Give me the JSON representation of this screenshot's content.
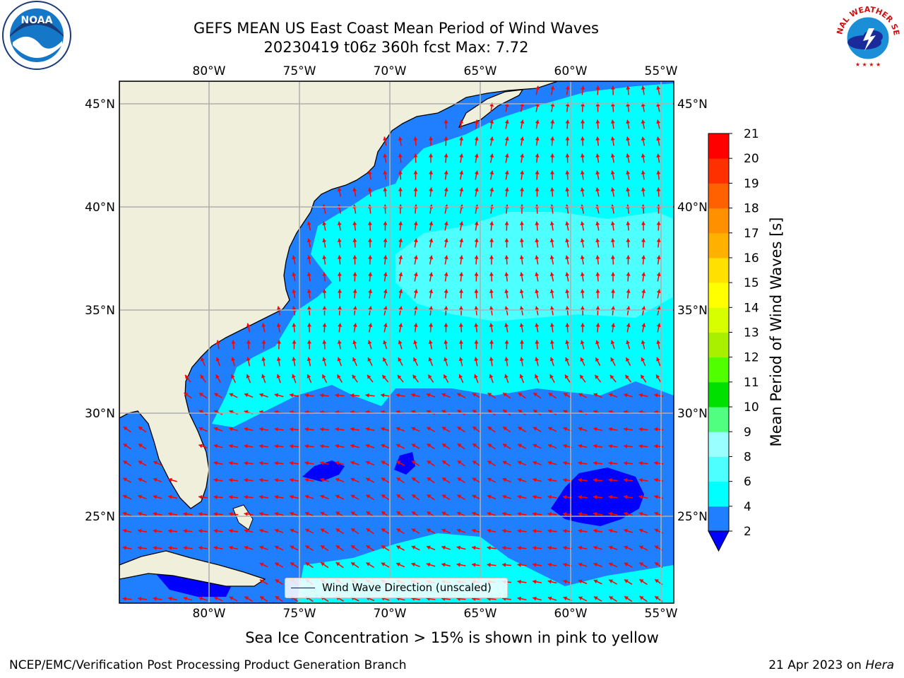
{
  "title": {
    "line1": "GEFS MEAN US East Coast Mean Period of Wind Waves",
    "line2": "20230419 t06z 360h fcst   Max: 7.72"
  },
  "logos": {
    "left": "NOAA",
    "right": "NATIONAL WEATHER SERVICE"
  },
  "chart_data": {
    "type": "heatmap",
    "projection": "map",
    "lon_range": [
      -85,
      -54.3
    ],
    "lat_range": [
      20.5,
      46
    ],
    "grid": true,
    "lon_ticks": [
      -80,
      -75,
      -70,
      -65,
      -60,
      -55
    ],
    "lat_ticks": [
      45,
      40,
      35,
      30,
      25
    ],
    "lon_tick_labels": [
      "80°W",
      "75°W",
      "70°W",
      "65°W",
      "60°W",
      "55°W"
    ],
    "lat_tick_labels": [
      "45°N",
      "40°N",
      "35°N",
      "30°N",
      "25°N"
    ],
    "colorbar": {
      "label": "Mean Period of Wind Waves [s]",
      "levels": [
        2,
        4,
        6,
        8,
        9,
        10,
        11,
        12,
        13,
        14,
        15,
        16,
        17,
        18,
        19,
        20,
        21
      ],
      "colors": [
        "#1f7fff",
        "#00ffff",
        "#4dffff",
        "#99ffff",
        "#50ff80",
        "#00e000",
        "#50ff00",
        "#a8f000",
        "#d8ff00",
        "#ffff00",
        "#ffe000",
        "#ffb000",
        "#ff9000",
        "#ff6000",
        "#ff3000",
        "#ff0000"
      ],
      "under_color": "#0000ff",
      "extend": "min"
    },
    "field_colors": {
      "under_2": "#0000ff",
      "2_4": "#1f7fff",
      "4_6": "#00ffff",
      "6_8": "#4dffff",
      "land": "#efefdc",
      "arrow": "#ff0000"
    },
    "legend": {
      "entry": "Wind Wave Direction (unscaled)",
      "placement": "bottom-center"
    },
    "max_value": 7.72
  },
  "footer": {
    "subtitle": "Sea Ice Concentration > 15% is shown in pink to yellow",
    "credit": "NCEP/EMC/Verification Post Processing Product Generation Branch",
    "date": "21 Apr 2023 on",
    "machine": "Hera"
  }
}
